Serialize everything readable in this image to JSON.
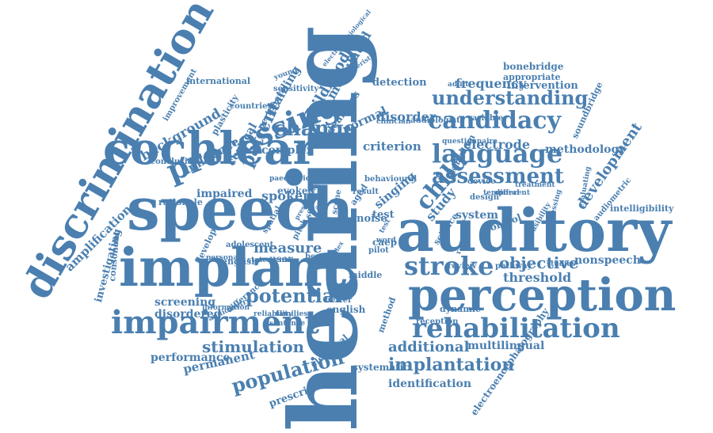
{
  "color": "#4a7fb0",
  "words": [
    "hearing",
    "speech",
    "auditory",
    "implant",
    "cochlear",
    "perception",
    "discrimination",
    "impairment",
    "processing",
    "rehabilitation",
    "stroke",
    "language",
    "candidacy",
    "understanding",
    "assessment",
    "child",
    "change",
    "potential",
    "population",
    "implantation",
    "stimulation",
    "additional",
    "multilingual",
    "objective",
    "nonspeech",
    "threshold",
    "patient",
    "childhood",
    "training",
    "modulated",
    "measure",
    "spoken",
    "impaired",
    "development",
    "electrode",
    "methodology",
    "frequency",
    "intervention",
    "bonebridge",
    "appropriate",
    "disorder",
    "criterion",
    "complex",
    "cortical",
    "influence",
    "background",
    "screening",
    "disordered",
    "performance",
    "permanent",
    "prescription",
    "electrical",
    "systematic",
    "identification",
    "electroencephalography",
    "amplification",
    "investigating",
    "consonant",
    "rationale",
    "conclusion",
    "international",
    "improvement",
    "sensitivity",
    "plasticity",
    "normal",
    "deafness",
    "detection",
    "clinician",
    "noise",
    "test",
    "caep",
    "english",
    "study",
    "system",
    "control",
    "review",
    "reception",
    "dynamic",
    "soundbridge",
    "audiometric",
    "intelligibility",
    "evaluating",
    "treatment",
    "device",
    "english",
    "develop",
    "singing",
    "evoked",
    "spatial",
    "pitch",
    "score",
    "scene",
    "aged",
    "adult",
    "audiologist",
    "variable",
    "behavioural",
    "result",
    "pilot",
    "word",
    "user",
    "benefit",
    "middle",
    "better",
    "method",
    "families",
    "reliability",
    "information",
    "audiometry",
    "difference",
    "sentence",
    "statement",
    "personal",
    "adolescent",
    "countries",
    "peripheral",
    "paediatric",
    "young",
    "electrophysiological",
    "characteristic",
    "questionnaire",
    "kingdom",
    "science",
    "range",
    "design",
    "temporal",
    "different",
    "assessing",
    "feasibility",
    "pathway",
    "studies",
    "presentation",
    "audio",
    "test",
    "reflex",
    "unilateral"
  ]
}
